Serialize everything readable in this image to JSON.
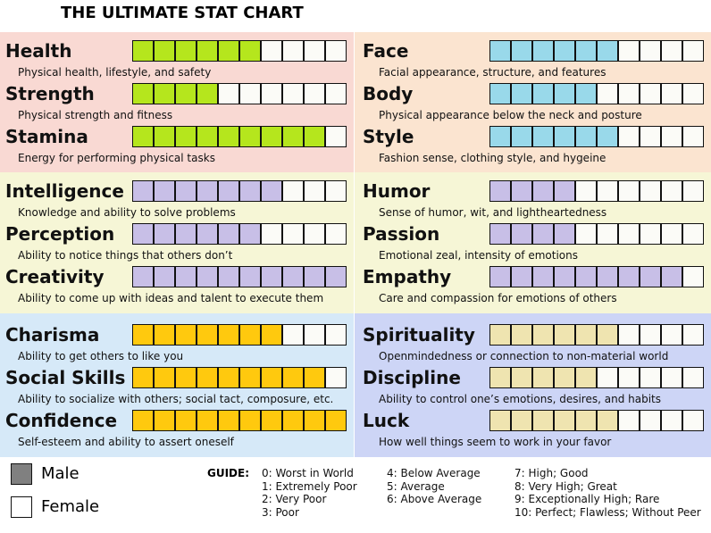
{
  "title": "THE ULTIMATE STAT CHART",
  "panels": [
    {
      "background": "#f9d9d3",
      "bar_color": "#b5e61d",
      "stats": [
        {
          "name": "Health",
          "description": "Physical health, lifestyle, and safety",
          "value": 6
        },
        {
          "name": "Strength",
          "description": "Physical strength and fitness",
          "value": 4
        },
        {
          "name": "Stamina",
          "description": "Energy for performing physical tasks",
          "value": 9
        }
      ]
    },
    {
      "background": "#fbe4d0",
      "bar_color": "#99d9ea",
      "stats": [
        {
          "name": "Face",
          "description": "Facial appearance, structure, and features",
          "value": 6
        },
        {
          "name": "Body",
          "description": "Physical appearance below the neck and posture",
          "value": 5
        },
        {
          "name": "Style",
          "description": "Fashion sense, clothing style, and hygeine",
          "value": 6
        }
      ]
    },
    {
      "background": "#f6f6d6",
      "bar_color": "#c8bfe7",
      "stats": [
        {
          "name": "Intelligence",
          "description": "Knowledge and ability to solve problems",
          "value": 7
        },
        {
          "name": "Perception",
          "description": "Ability to notice things that others don’t",
          "value": 6
        },
        {
          "name": "Creativity",
          "description": "Ability to come up with ideas and talent to execute them",
          "value": 10
        }
      ]
    },
    {
      "background": "#f6f6d6",
      "bar_color": "#c8bfe7",
      "stats": [
        {
          "name": "Humor",
          "description": "Sense of humor, wit, and lightheartedness",
          "value": 4
        },
        {
          "name": "Passion",
          "description": "Emotional zeal, intensity of emotions",
          "value": 4
        },
        {
          "name": "Empathy",
          "description": "Care and compassion for emotions of others",
          "value": 9
        }
      ]
    },
    {
      "background": "#d6e9f8",
      "bar_color": "#ffc90e",
      "stats": [
        {
          "name": "Charisma",
          "description": "Ability to get others to like you",
          "value": 7
        },
        {
          "name": "Social Skills",
          "description": "Ability to socialize with others; social tact, composure, etc.",
          "value": 9
        },
        {
          "name": "Confidence",
          "description": "Self-esteem and ability to assert oneself",
          "value": 10
        }
      ]
    },
    {
      "background": "#cdd5f6",
      "bar_color": "#efe4b0",
      "stats": [
        {
          "name": "Spirituality",
          "description": "Openmindedness or connection to non-material world",
          "value": 6
        },
        {
          "name": "Discipline",
          "description": "Ability to control one’s emotions, desires, and habits",
          "value": 5
        },
        {
          "name": "Luck",
          "description": "How well things seem to work in your favor",
          "value": 6
        }
      ]
    }
  ],
  "legend": [
    {
      "label": "Male",
      "color": "#808080"
    },
    {
      "label": "Female",
      "color": "#ffffff"
    }
  ],
  "guide": {
    "title": "GUIDE:",
    "items": [
      "0: Worst in World",
      "1: Extremely Poor",
      "2: Very Poor",
      "3: Poor",
      "4: Below Average",
      "5: Average",
      "6: Above Average",
      "7: High; Good",
      "8: Very High; Great",
      "9: Exceptionally High; Rare",
      "10: Perfect; Flawless; Without Peer"
    ]
  }
}
